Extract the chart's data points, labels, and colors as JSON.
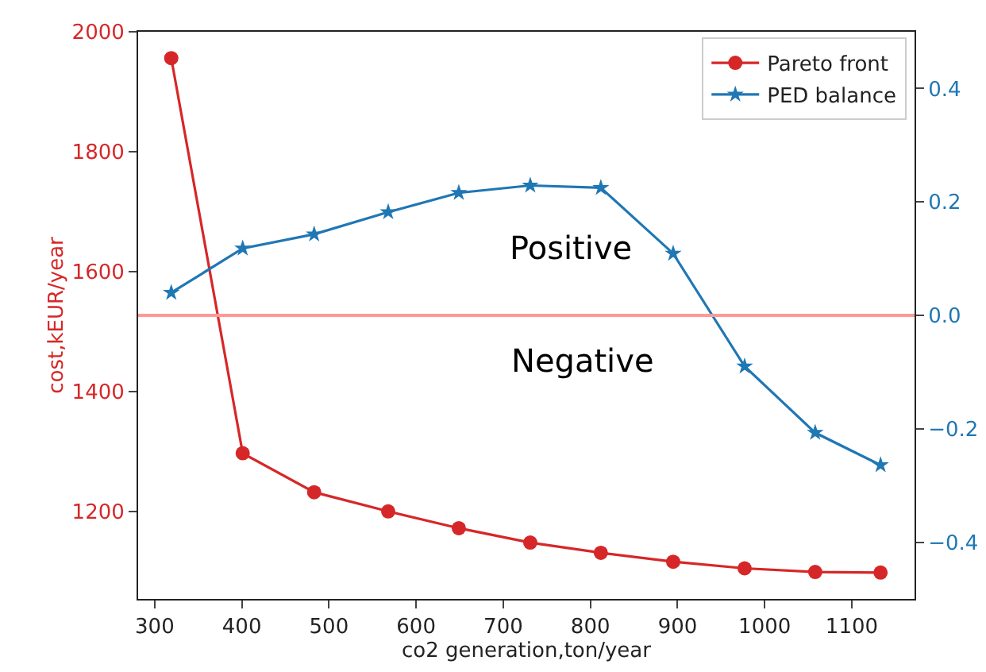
{
  "chart_data": {
    "type": "line",
    "xlabel": "co2 generation,ton/year",
    "ylabel": "cost,kEUR/year",
    "xlim": [
      281,
      1172
    ],
    "xticks": [
      300,
      400,
      500,
      600,
      700,
      800,
      900,
      1000,
      1100
    ],
    "ylim": [
      1054,
      2000
    ],
    "yticks": [
      1200,
      1400,
      1600,
      1800,
      2000
    ],
    "y2lim": [
      -0.5,
      0.5
    ],
    "y2ticks": [
      {
        "value": -0.4,
        "label": "−0.4"
      },
      {
        "value": -0.2,
        "label": "−0.2"
      },
      {
        "value": 0,
        "label": "0.0"
      },
      0.2,
      0.4
    ],
    "grid": false,
    "legend": "top right",
    "series": [
      {
        "name": "Pareto front",
        "color": "#d62728",
        "marker": "circle",
        "x": [
          319,
          401,
          483,
          568,
          649,
          731,
          812,
          895,
          977,
          1058,
          1133
        ],
        "values": [
          1956,
          1297,
          1232,
          1200,
          1172,
          1148,
          1131,
          1116,
          1105,
          1099,
          1098
        ]
      },
      {
        "name": "PED balance",
        "color": "#1f77b4",
        "marker": "star",
        "axis": "y2",
        "x": [
          319,
          401,
          483,
          568,
          649,
          731,
          812,
          895,
          977,
          1058,
          1133
        ],
        "values": [
          0.04,
          0.118,
          0.143,
          0.182,
          0.216,
          0.229,
          0.225,
          0.109,
          -0.09,
          -0.207,
          -0.264
        ]
      }
    ],
    "ref_lines": [
      {
        "axis": "y2",
        "value": 0,
        "color": "#ff9896"
      }
    ],
    "annotations": [
      "Positive",
      "Negative"
    ]
  }
}
